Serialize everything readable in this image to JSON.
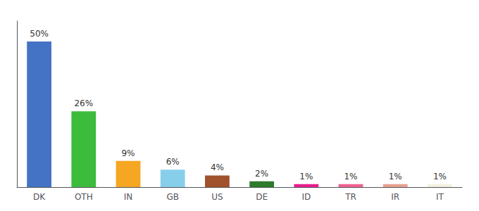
{
  "chart_data": {
    "type": "bar",
    "categories": [
      "DK",
      "OTH",
      "IN",
      "GB",
      "US",
      "DE",
      "ID",
      "TR",
      "IR",
      "IT"
    ],
    "values": [
      50,
      26,
      9,
      6,
      4,
      2,
      1,
      1,
      1,
      1
    ],
    "value_labels": [
      "50%",
      "26%",
      "9%",
      "6%",
      "4%",
      "2%",
      "1%",
      "1%",
      "1%",
      "1%"
    ],
    "colors": [
      "#4472c4",
      "#3dbb3d",
      "#f5a623",
      "#87ceeb",
      "#a0522d",
      "#2d7a2d",
      "#e91e8c",
      "#f06292",
      "#e8a090",
      "#f5f0e0"
    ],
    "ylim": [
      0,
      57
    ],
    "grid": false,
    "data_labels": true,
    "tick_labels": "x"
  }
}
